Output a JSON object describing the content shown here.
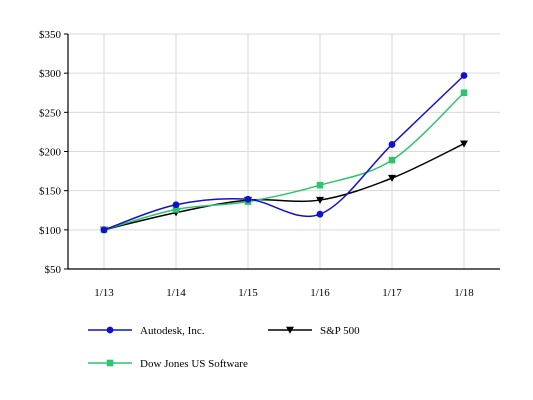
{
  "chart_data": {
    "type": "line",
    "title": "",
    "xlabel": "",
    "ylabel": "",
    "categories": [
      "1/13",
      "1/14",
      "1/15",
      "1/16",
      "1/17",
      "1/18"
    ],
    "ylim": [
      50,
      350
    ],
    "yticks": [
      50,
      100,
      150,
      200,
      250,
      300,
      350
    ],
    "ytick_labels": [
      "$50",
      "$100",
      "$150",
      "$200",
      "$250",
      "$300",
      "$350"
    ],
    "grid": true,
    "legend_position": "bottom",
    "series": [
      {
        "name": "Autodesk, Inc.",
        "color": "#1111cc",
        "marker": "circle",
        "values": [
          100,
          132,
          139,
          120,
          209,
          297
        ]
      },
      {
        "name": "S&P 500",
        "color": "#000000",
        "marker": "triangle-down",
        "values": [
          100,
          122,
          138,
          138,
          166,
          210
        ]
      },
      {
        "name": "Dow Jones US Software",
        "color": "#2ec46e",
        "marker": "square",
        "values": [
          100,
          126,
          136,
          157,
          189,
          275
        ]
      }
    ]
  }
}
